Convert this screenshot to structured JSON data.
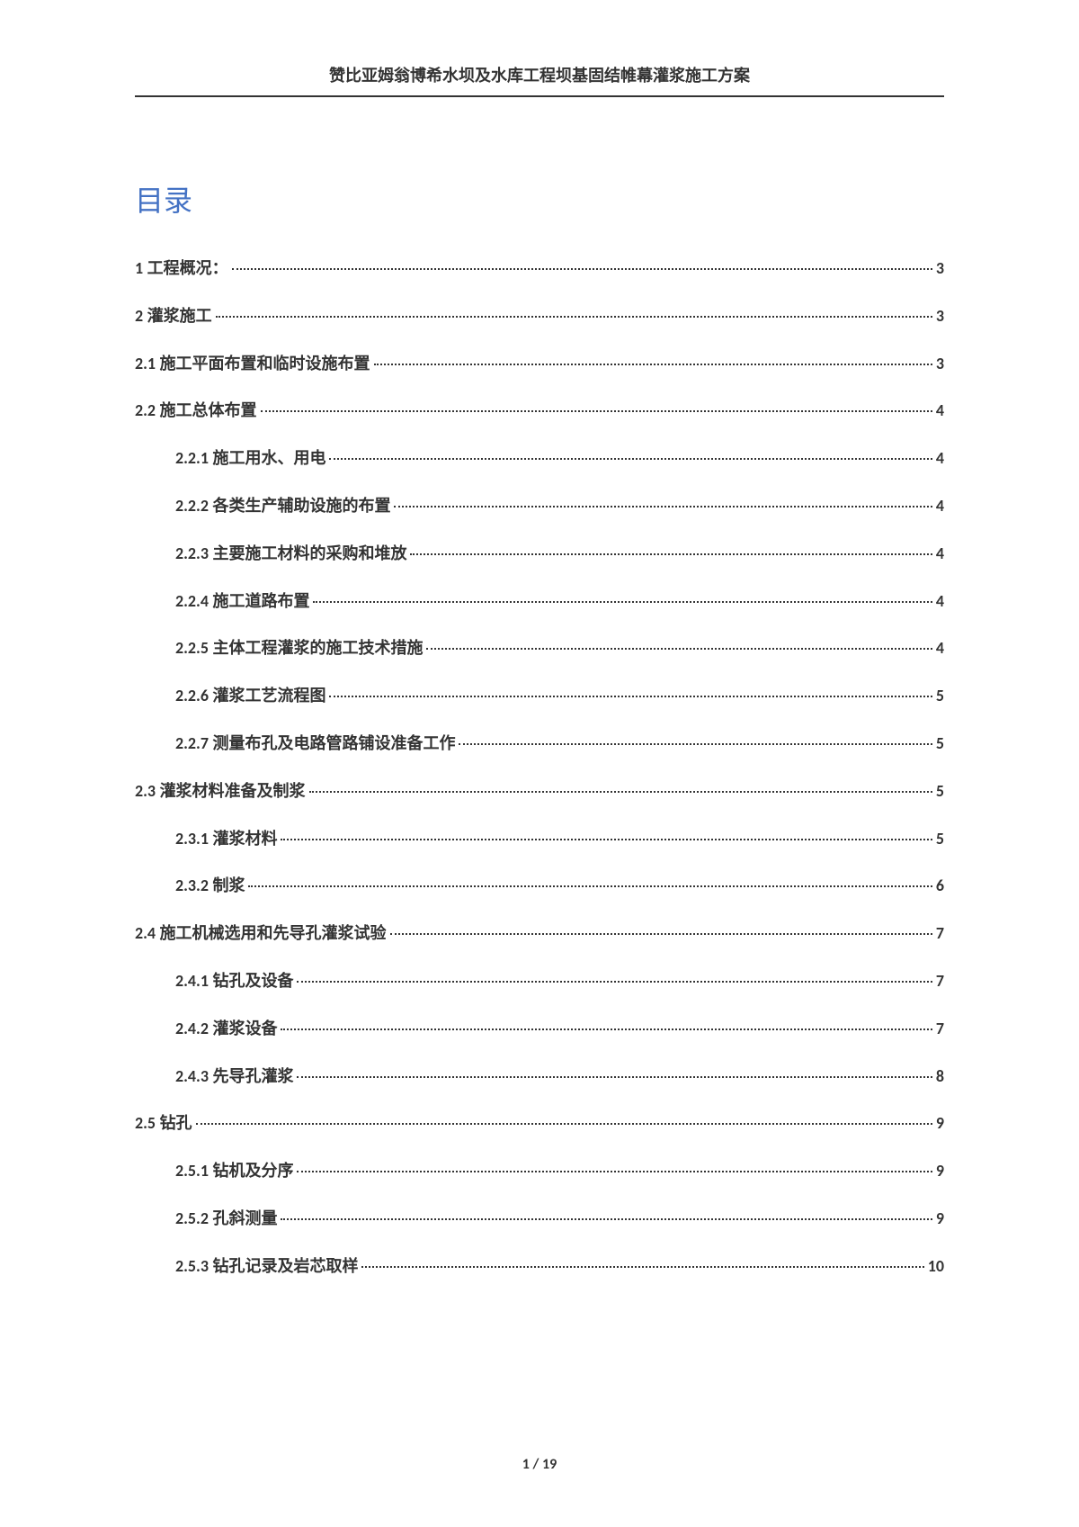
{
  "header_title": "赞比亚姆翁博希水坝及水库工程坝基固结帷幕灌浆施工方案",
  "toc_title": "目录",
  "toc": [
    {
      "num": "1",
      "text": "工程概况：",
      "page": "3",
      "level": 0
    },
    {
      "num": "2",
      "text": "灌浆施工",
      "page": "3",
      "level": 0
    },
    {
      "num": "2.1",
      "text": "施工平面布置和临时设施布置",
      "page": "3",
      "level": 1
    },
    {
      "num": "2.2",
      "text": "施工总体布置",
      "page": "4",
      "level": 1
    },
    {
      "num": "2.2.1",
      "text": "施工用水、用电",
      "page": "4",
      "level": 2
    },
    {
      "num": "2.2.2",
      "text": "各类生产辅助设施的布置",
      "page": "4",
      "level": 2
    },
    {
      "num": "2.2.3",
      "text": "主要施工材料的采购和堆放",
      "page": "4",
      "level": 2
    },
    {
      "num": "2.2.4",
      "text": "施工道路布置",
      "page": "4",
      "level": 2
    },
    {
      "num": "2.2.5",
      "text": "主体工程灌浆的施工技术措施",
      "page": "4",
      "level": 2
    },
    {
      "num": "2.2.6",
      "text": "灌浆工艺流程图",
      "page": "5",
      "level": 2
    },
    {
      "num": "2.2.7",
      "text": "测量布孔及电路管路铺设准备工作",
      "page": "5",
      "level": 2
    },
    {
      "num": "2.3",
      "text": "灌浆材料准备及制浆",
      "page": "5",
      "level": 1
    },
    {
      "num": "2.3.1",
      "text": "灌浆材料",
      "page": "5",
      "level": 2
    },
    {
      "num": "2.3.2",
      "text": "制浆",
      "page": "6",
      "level": 2
    },
    {
      "num": "2.4",
      "text": "施工机械选用和先导孔灌浆试验",
      "page": "7",
      "level": 1
    },
    {
      "num": "2.4.1",
      "text": "钻孔及设备",
      "page": "7",
      "level": 2
    },
    {
      "num": "2.4.2",
      "text": "灌浆设备",
      "page": "7",
      "level": 2
    },
    {
      "num": "2.4.3",
      "text": "先导孔灌浆",
      "page": "8",
      "level": 2
    },
    {
      "num": "2.5",
      "text": "钻孔",
      "page": "9",
      "level": 1
    },
    {
      "num": "2.5.1",
      "text": "钻机及分序",
      "page": "9",
      "level": 2
    },
    {
      "num": "2.5.2",
      "text": "孔斜测量",
      "page": "9",
      "level": 2
    },
    {
      "num": "2.5.3",
      "text": "钻孔记录及岩芯取样",
      "page": "10",
      "level": 2
    }
  ],
  "footer": "1 / 19"
}
